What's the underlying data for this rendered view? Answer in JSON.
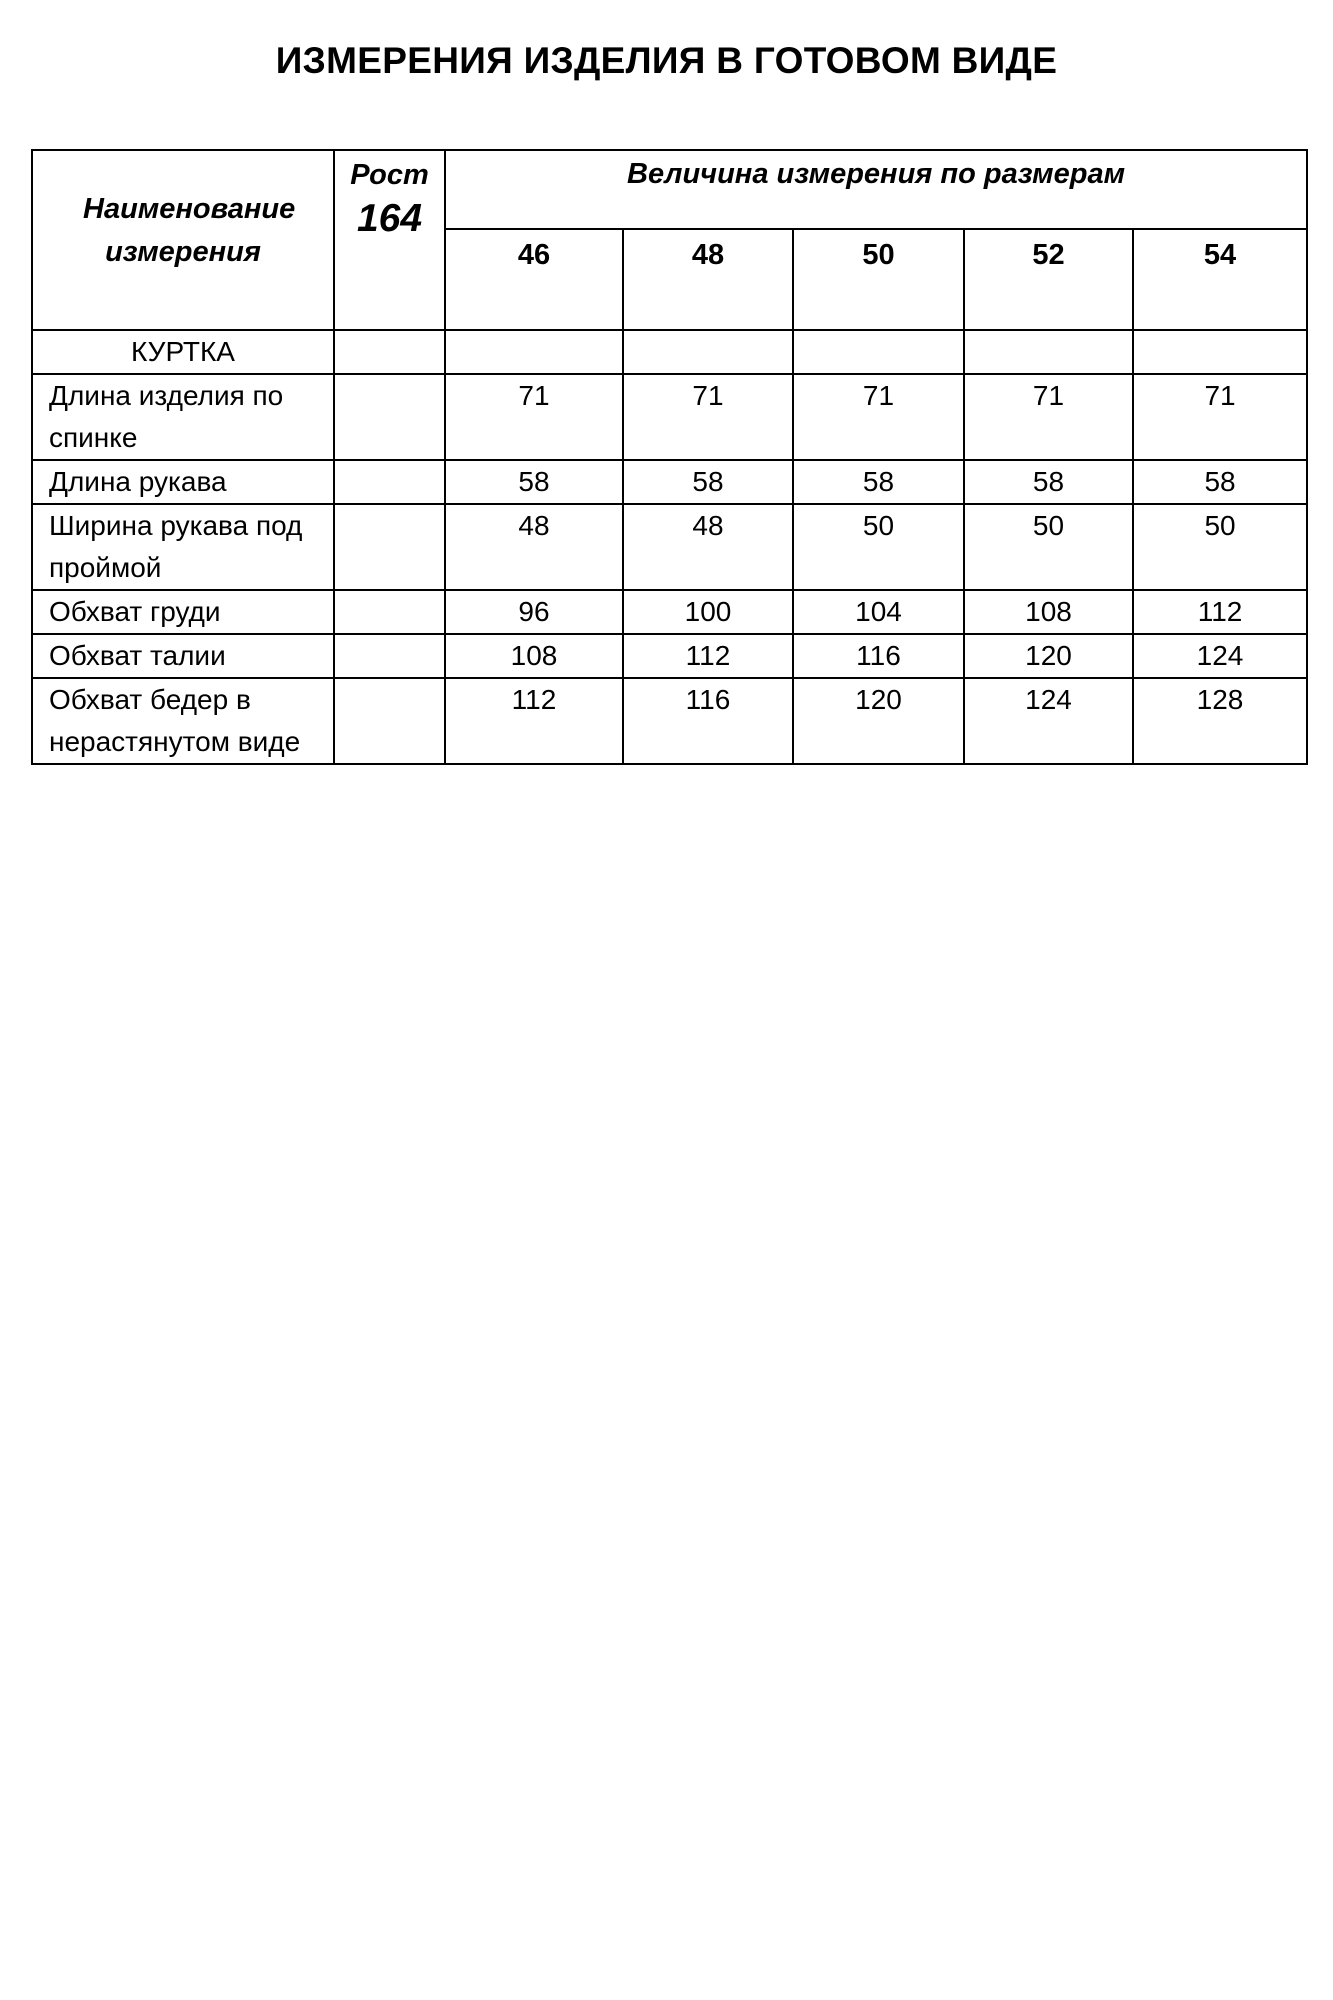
{
  "title": "ИЗМЕРЕНИЯ ИЗДЕЛИЯ В ГОТОВОМ ВИДЕ",
  "table": {
    "header_name": "Наименование измерения",
    "height_label": "Рост",
    "height_value": "164",
    "sizes_label": "Величина измерения по размерам",
    "sizes": [
      "46",
      "48",
      "50",
      "52",
      "54"
    ],
    "section": "КУРТКА",
    "rows": [
      {
        "name": "Длина изделия по спинке",
        "values": [
          "71",
          "71",
          "71",
          "71",
          "71"
        ]
      },
      {
        "name": "Длина рукава",
        "values": [
          "58",
          "58",
          "58",
          "58",
          "58"
        ]
      },
      {
        "name": "Ширина рукава под проймой",
        "values": [
          "48",
          "48",
          "50",
          "50",
          "50"
        ]
      },
      {
        "name": "Обхват груди",
        "values": [
          "96",
          "100",
          "104",
          "108",
          "112"
        ]
      },
      {
        "name": "Обхват талии",
        "values": [
          "108",
          "112",
          "116",
          "120",
          "124"
        ]
      },
      {
        "name": "Обхват бедер в нерастянутом виде",
        "values": [
          "112",
          "116",
          "120",
          "124",
          "128"
        ]
      }
    ]
  }
}
